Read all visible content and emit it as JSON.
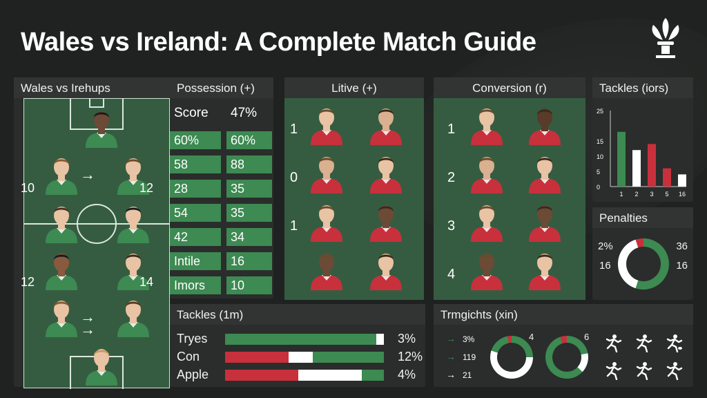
{
  "title": "Wales vs Ireland: A Complete Match Guide",
  "colors": {
    "green": "#3d8a52",
    "red": "#c8303c",
    "white": "#ffffff",
    "pitch": "#355c41",
    "panel": "#2a2d2b"
  },
  "lineups": {
    "header": "Wales vs Irehups",
    "numbers": {
      "left_10": "10",
      "right_12": "12",
      "left_12": "12",
      "right_14": "14"
    }
  },
  "possession": {
    "header": "Possession (+)",
    "score_label": "Score",
    "score_value": "47%",
    "rows": [
      {
        "left": "60%",
        "right": "60%"
      },
      {
        "left": "58",
        "right": "88"
      },
      {
        "left": "28",
        "right": "35"
      },
      {
        "left": "54",
        "right": "35"
      },
      {
        "left": "42",
        "right": "34"
      },
      {
        "left": "Intile",
        "right": "16"
      },
      {
        "left": "Imors",
        "right": "10"
      }
    ]
  },
  "live": {
    "header": "Litive (+)",
    "row_numbers": [
      "1",
      "0",
      "1",
      ""
    ]
  },
  "conversion": {
    "header": "Conversion (r)",
    "row_numbers": [
      "1",
      "2",
      "3",
      "4"
    ]
  },
  "tackles_chart": {
    "header": "Tackles (iors)",
    "chart_data": {
      "type": "bar",
      "categories": [
        "1",
        "2",
        "3",
        "5",
        "16"
      ],
      "values": [
        18,
        12,
        14,
        6,
        4
      ],
      "y_ticks": [
        "25",
        "15",
        "10",
        "5",
        "0"
      ],
      "colors": [
        "#3d8a52",
        "#ffffff",
        "#c8303c",
        "#c8303c",
        "#ffffff"
      ],
      "ylim": [
        0,
        25
      ]
    }
  },
  "penalties": {
    "header": "Penalties",
    "left_top": "2%",
    "left_bottom": "16",
    "right_top": "36",
    "right_bottom": "16",
    "donut": {
      "green": 0.55,
      "white": 0.4,
      "red": 0.05
    }
  },
  "tackles_bars": {
    "header": "Tackles (1m)",
    "rows": [
      {
        "label": "Tryes",
        "pct": "3%",
        "segments": [
          {
            "color": "#3d8a52",
            "frac": 0.95
          },
          {
            "color": "#ffffff",
            "frac": 0.05
          }
        ]
      },
      {
        "label": "Con",
        "pct": "12%",
        "segments": [
          {
            "color": "#c8303c",
            "frac": 0.4
          },
          {
            "color": "#ffffff",
            "frac": 0.15
          },
          {
            "color": "#3d8a52",
            "frac": 0.45
          }
        ]
      },
      {
        "label": "Apple",
        "pct": "4%",
        "segments": [
          {
            "color": "#c8303c",
            "frac": 0.46
          },
          {
            "color": "#ffffff",
            "frac": 0.4
          },
          {
            "color": "#3d8a52",
            "frac": 0.14
          }
        ]
      }
    ]
  },
  "tramgichts": {
    "header": "Trmgichts (xin)",
    "items": [
      {
        "arrow": "→",
        "value": "3%"
      },
      {
        "arrow": "→",
        "value": "119"
      },
      {
        "arrow": "→",
        "value": "21"
      }
    ],
    "donut1_label": "4",
    "donut2_label": "6",
    "icons": [
      "running-player-icon",
      "running-player-icon",
      "kicking-player-icon",
      "running-player-icon",
      "running-player-icon",
      "diving-player-icon"
    ]
  }
}
